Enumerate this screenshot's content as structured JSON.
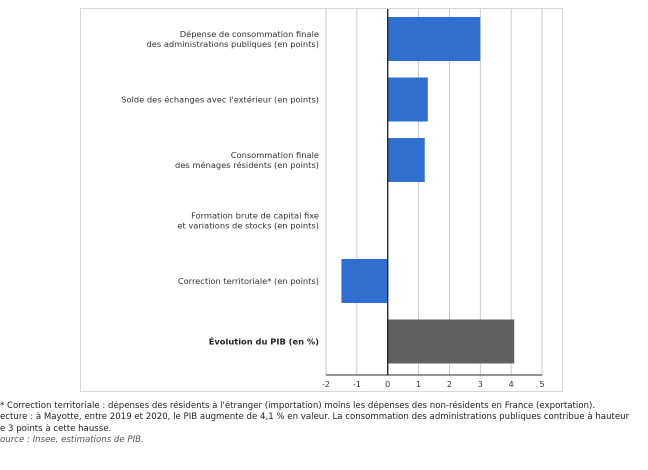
{
  "chart_data": {
    "type": "bar",
    "orientation": "horizontal",
    "categories": [
      [
        "Dépense de consommation finale",
        "des administrations publiques (en points)"
      ],
      [
        "Solde des échanges avec l'extérieur (en points)"
      ],
      [
        "Consommation finale",
        "des ménages résidents (en points)"
      ],
      [
        "Formation brute de capital fixe",
        "et variations de stocks (en points)"
      ],
      [
        "Correction territoriale* (en points)"
      ],
      [
        "Évolution du PIB (en %)"
      ]
    ],
    "values": [
      3.0,
      1.3,
      1.2,
      0.0,
      -1.5,
      4.1
    ],
    "bar_colors": [
      "#2f6fd0",
      "#2f6fd0",
      "#2f6fd0",
      "#2f6fd0",
      "#2f6fd0",
      "#606060"
    ],
    "xlim": [
      -2,
      5
    ],
    "xticks": [
      "-2",
      "-1",
      "0",
      "1",
      "2",
      "3",
      "4",
      "5"
    ],
    "grid": true,
    "bold_category_index": 5
  },
  "notes": {
    "note": "Correction territoriale : dépenses des résidents à l'étranger (importation) moins les dépenses des non-résidents en France (exportation).",
    "lecture_1": "ecture : à Mayotte, entre 2019 et 2020, le PIB augmente de 4,1 % en valeur. La consommation des administrations publiques contribue à hauteur",
    "lecture_2": "e 3 points à cette hausse.",
    "source": "ource : Insee, estimations de PIB."
  }
}
